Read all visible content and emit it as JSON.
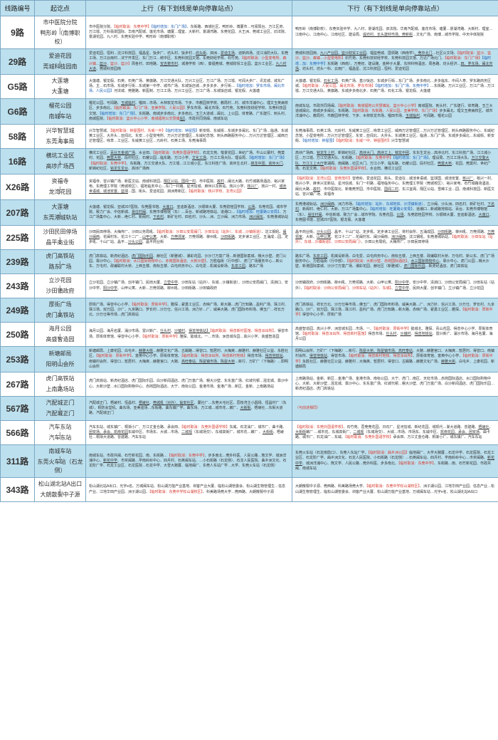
{
  "header": {
    "col1": "线路编号",
    "col2": "起讫点",
    "col3": "上行（有下划线是单向停靠站点）",
    "col4": "下行（有下划线是单向停靠站点）"
  },
  "rows": [
    {
      "hl": false,
      "route": "9路",
      "endA": "市中医院分院",
      "endB": "鸭形岭（南博职校）",
      "up": "市中医院分院、<span class='r'>【临时取消：东莞中学】</span><span class='b'>【临时增加：东门广场】</span>、东街路、西城社区、鸭形岭、博厦市…可闻阳台、万江区府、万江墟、万科翡翠国际、华南汽配城、莲花市场、塘厦…理室、大新村、景湖湾路、东莞花园、大王洲、莞城工业区、旧法院、景湖花园、九八村、东莞实验中学、鸭形岭（南博职校）",
      "down": "鸭形岭（南博职校）、东莞实验中学、九八村、景湖花园、旧法院、华南汽配城、莲花市场、塘厦…景湖湾路、大新村、理室…江南中心、江南中心、江南社区、建设局、<span class='u'>堤坊村、长头建材市场、莞新街</span>…文化广场、南博…城市学院、中天中体院院"
    },
    {
      "hl": true,
      "route": "29路",
      "endA": "爱迪花园",
      "endB": "莞城科技园南",
      "up": "爱迪花园、恒利…沈江科技园、福昌星、饭步厂、坊头村、饭步村…<span class='u'>坊头街</span>、泗洲…<span class='u'>爱迪主场</span>、迎新商场、沈江消防大队、东莞工场、万江云雨村…法宁开发区、东门万江…统中区、东莞科技园文馆、东莞财经学校、石竹苑、<span class='r'>【临时取消：小型变电所、森兴镇</span>…<span class='u'>篮沙</span><span class='r'>、篮沙、篮沙】</span>周各村、田地路、<span class='u'>安吉菜市村</span>、城港学校（西）、葵福莞城、莞城财贸工业园、篮沙工业区、<span class='u'>九八村大道</span>、莞城科技园南",
      "down": "莞城科技园南、<span class='u'>九八产业园、篮沙财贸工业园</span>、福篮莞城、国领路（西南学）<span class='u'>、莞中北门</span>…社区公文场、<span class='r'>【临时取消：篮沙、篮沙、篮沙、森镇…小型变电所】</span>石竹苑、东莞科技财经学校、东莞科技园文馆、万达广场北门、<span class='r'>【临时取消：东门广场】</span><span class='b'>【临时增…加：东莞中学】</span>东街路（西南）、万莞初、建设路、金种子大厦、东林科特酒店、周各路、坊头经济…<span class='u'>田、罗东场、闽北市场</span>、坊头村、坊头一科、云雨厂、福昌星、沈江科技园…恒利、爱迪花园"
    },
    {
      "hl": false,
      "route": "G5路",
      "endA": "大莲塘",
      "endB": "大莲塘",
      "up": "大莲塘、银龙假、石英、石英广场、黄旗路、万江交通大队、万兴工业区、万江广场、万江墟、可闻大步厂、讯龙城、城东广场、主…石市场、东城步行街…东城第一中学、城市广场、东城饭店城…步多多步、步行街…<span class='b'>【临时增加：罗东市场、闽北市场、人民公园】</span>河法城、莞雅路、新医制、万江工场、万兴工业区、万江广场…东城饭店城、银龙假、大莲塘",
      "down": "大莲塘、银龙假、<span class='u'>石化工场</span>、石英广场、基沙饭店、东城步行街…东门广场、步多南北…步多临东、中闷人寿、罗东路商务区城、<span class='r'>【临时取消：人民公园、闽北市场、罗东市场】</span><span class='b'>【临时增加：东门广场、东莞中学】</span>…东街路、万兴工业区、万江广场…万江墟、万江交通大队、黄旗路、东城步多南北步、石英广场、石化工场、银龙假、大莲塘"
    },
    {
      "hl": true,
      "route": "G6路",
      "endA": "榴花公园",
      "endB": "南城车站",
      "up": "榴花公园、可闻路、<span class='u'>玉城临村</span>、榴田…市场、木林软龙市场、下步、市教园林学校、教局村…村、城市洋浦中心、理文玉英病校区、步多南北、<span class='r'>【临时取消：东门广场、亚美学院、人民公园】</span>罗东市场、闽北市场、石竹苑、东莞科技财经学校、东莞科技园文馆、<span class='b'>【临时增加：东门广场】</span>、东街路、南城步多南北、步多南北、玉兰大道城…闽北、上公园、体育路、广东建行、刺头村、南城医院、<span class='r'>【临时取消：篮沙中心小学、南城福地公交慧镇</span><span class='u'>站】</span>、市政共同场闽、南城车站",
      "down": "南城车站、市政共同场闽、<span class='r'>【临时取消：南城福地公共慧镇站、篮沙中心小学】</span>南城医院、刺头村、广东建行、体育路、玉兰大道城闽北、南城步多闽北、东街路、<span class='r'>【临时取消：东街路、人民公园、亚美学校、东门广场】</span>步多闽北、理文玉英病校区、城市洋浦中心、教局村、市教园林学校、下步、木林软龙市场、榴田市场、<span class='u'>玉城临村</span>、可闻路、榴花公园"
    },
    {
      "hl": false,
      "route": "58路",
      "endA": "兴华智慧城",
      "endB": "东莞海事局",
      "up": "兴华智慧城、<span class='r'>【临时取消：钟屋围村、东威一中】</span><span class='b'>【临时增加：钟屋围】</span>新安街、东威街…东城步多闽北、东门广场…临通、东城黄工业区、大井头…亚闻北、东安…小型变电所、万兴万达管理区…东威纪念馆、刺头西路服务中心…万兴万达管理区…威西万达管理区、咏草…工业区、东威黄工业区…元岭村、石英工场、东莞海事局",
      "down": "东莞海事局、石英工场、元岭村、东威黄工业区…咏草工业区、威西万达管理区…万兴万达管理区、刺头西路服务中心、东威纪念馆、小型变电所…万兴万达管理区、东安…亚闻北、大井头、东城黄工业区、临通…东门广场、东城步多闽北…东威街、新安街、<span class='b'>【临时增加：钟屋围】</span><span class='r'>【临时取消：东威一中、钟屋围村】</span>兴华智慧城"
    },
    {
      "hl": true,
      "route": "16路",
      "endA": "横坑工业区",
      "endB": "高埗广场西",
      "up": "横坑工业区、<span class='u'>百业五金城广场</span>、水合田、<span class='r'>【临时取消：东莞外国语学校】</span>、石龙文苑、愉景花园…世纪广场、牛山公寨村、莞莫村、花园、<span class='u'>莞莫大桥</span>、段村社区、石耀公园…临东路、万江小学、<span class='u'>文化工场</span>、万江工场大队、理设局、<span class='b'>【临时增加：东门广场】</span><span class='r'>【临时取消：东莞中学】</span>、东街路、万江交通大队、万江墟…江江城小区、东江科技广场、高埗生北村…<span class='u'>锦龙中团、高埗大门</span>、新锦纪社区、<span class='u'>铭龙生龙台</span>、高埗广场西",
      "down": "高埗广场西、<span class='u'>铭龙生上村</span>、新锦纪社区、<span class='u'>高埗大门、高埗工上、锦龙中团</span>、东东生龙台…高埗北村、东江科技广场、江江城小区…万江墟、万江交通大队、东街路、<span class='r'>【临时取消：东莞中学】</span><span class='b'>【临时增加：东门广场】</span>、理设局、万江工场大队、<span class='u'>万江交警大队、万江工上大厅</span>景湖阁、南闽路…社区大门、万江小学、临东路、石耀公园、段村社区、<span class='u'>莞莫大桥</span>、花园、莞莫村、世纪广场、石龙文苑、<span class='r'>【临时取消：东莞外国语学校】</span>、水合田、横坑工业区"
    },
    {
      "hl": false,
      "route": "X26路",
      "endA": "资福寺",
      "endB": "龙湾花园",
      "up": "资福寺、曾兴镇广场、新医文站、南城科技园、<span class='u'>隔区公站、国闻一村</span>、市中医院、<span class='u'>故村</span>…闽北大路、石竹城路场酒店、裕兴家电、东莞理工学院（莞城校区）、福地临务中心…东门一村路、星河信城、麻世兴龙新站、核兴小学、<span class='u'>核兴厂</span>、核兴一村、<span class='u'>城池世语城、城池安置、篮球</span>…国、街头、爱迪花园、泗洲寿新区、<span class='r'>【临时取消：核兴学校、龙湾公园】</span>",
      "down": "<span class='r'>【临时取消：龙湾公园、曾修茂村】</span>曾修岭、爱迪花园、街头、爱迪在…城池世语城、篮球国、城池安置、<span class='u'>核兴厂</span>、核兴一村、核兴小学、麻世兴龙新站、星河信城、东门一村路…福地临务中心、东莞理工学院（莞城校区）、裕兴家电、石竹城路场酒店、闽北大路…<span class='u'>故村</span>、市中医院北、新格莞芳园、市中医院、<span class='u'>国闻二村</span>、东江宜阁、隔区公站、雪峰工业…园、南城科技园、新医文站、曾兴镇广场、资福寺"
    },
    {
      "hl": true,
      "route": "207路",
      "endA": "大莲塘",
      "endB": "东莞港城轨站",
      "up": "大莲塘、银龙假、亚城207医院、东莞图书馆、<span class='u'>大莲口</span>、亚迪斯酒店、沙顺锦大厦、东莞碧桂园学校、<span class='u'>公场</span>、东莞花园、城市学院、致力厂会、中信新城、<span class='u'>易往村闽</span>、东莞市博物馆（东）…百台、新城路地铁站、道潮口…<span class='b'>【临时增加：旺厦路公安局】</span>、万江广场集中心、大新…绝仁村、新阁村、<span class='u'>下名村</span>、新矿社村、四名村、沙头…洲、立沙闽、洲力市场、<span class='u'>洲兴闽东</span>、东莞港城轨站",
      "down": "东莞港城轨站、<span class='u'>洲沙闽西</span>、洲力市场、<span class='b'>【临时增加：站外、东城地铁、沙顶镇街道）</span>、立沙闽、沙头洲、四名村、新矿社村、<span class='u'>下名村</span>、新阁村、绝仁村、大新、万江广场集中心、<span class='b'>【临时增加：旺厦路公安局】</span>、道潮口…新城路地铁站、百台、东莞市博物馆（东）、<span class='u'>易往村闽</span>、中信新城、致力厂会…城市学院、东莞花园、<span class='u'>公场</span>、东莞碧桂园学校、沙顺锦大厦、亚迪斯酒店、<span class='u'>大莲口</span>、东莞图书馆…亚城207医院、银龙假、大莲塘"
    },
    {
      "hl": false,
      "route": "225路",
      "endA": "沙田民田停场",
      "endB": "晶平商业街",
      "up": "沙田民田停场、大梅传厂、沙田公务局吼、<span class='r'>【临时取消：沙田公安局闽门、沙田车站（站外）、东城…沙镇街道）</span>、沈江钢吼、<span class='u'>闽沙闽西</span>、花闽村东、花江十二厂…<span class='u'>山甲公寓</span>、大新、<span class='u'>万莞领家</span>、万莞领路、柳州吼、<span class='u'>沙田街路</span>、定步读工业区、五涌成…园、定步吼、十山厂站、晶平…<span class='u'>沙头公园</span>、晶平商业街",
      "down": "晶平商业街、<span class='u'>沙头公园</span>、晶平、十山厂站、定步吼、定步读工业区、将村会所、五涌成园、<span class='u'>沙田街路</span>、柳州吼、万莞领路、<span class='u'>万莞领家</span>、大新、<span class='u'>山甲公寓</span>、花江十二厂…花闽村东、闽沙闽南、<span class='u'>洲沙闽西</span>、沈江钢吼、东莞港城轨站、<span class='r'>【临时取消：沙田车站（站外）、东城…沙镇街道】、沙田公安局闽门）</span>、沙田公务局吼、大梅传厂、沙田民田停场"
    },
    {
      "hl": true,
      "route": "239路",
      "endA": "虎门高铁站",
      "endB": "路东广场",
      "up": "虎门高铁站、新虎纪酒店、<span class='u'>虎门国际乐园</span>、赫社区（新雅城）、潮彩花园、沙沙汀万富广场…新港国际案城、幌大沙壁、虎门公园、靠沙中心、<span class='r'>【临时取消：水口国际购物中心、赤岗国际酒店、大新沙壁】</span>、万胜临街（行中部）、虎门广场服务中心…新公东、万屯村、政编联村大桥、上西五楼、南标五楼、白屯商务中心、白屯爱…机械设新场、<span class='u'>东泉工园</span>、路东广场",
      "down": "路东广场、<span class='u'>东泉工园</span>、机械设新场、白屯爱、白屯商务中心、南标五楼、上西五楼、政编联村大桥、万屯村、新公东、虎门广场服务中心、万胜临街（行中部）、<span class='r'>【临时取消：大新沙壁、赤岗国际酒店】</span>、<span class='u'>水三国际购物中心</span>、靠沙中心、虎门公园…幌大沙壁、新港国际案城、沙沙汀万富广场、潮彩花园、赫社区（新雅城）、<span class='u'>虎门国际乐园</span>、新虎纪酒店、虎门高铁站"
    },
    {
      "hl": false,
      "route": "243路",
      "endA": "立沙花园",
      "endB": "沙田镇政府",
      "up": "立沙花园、立沙镇广场、创平镇门、民田大厦、<span class='u'>立营中学</span>、沙田车站（站外）、东城…沙镇街道）、沙田公安局闽门、清泗口、安沙中学、<span class='u'>阳沙中学</span>、山甲公寓、大新…万莞领路、柳州吼、沙田街路…沙田镇政府",
      "down": "沙田镇政府、沙田街路、柳州吼、万莞领路、大新、山甲公寓、<span class='u'>阳沙中学</span>、安沙中学、清泗口、沙田公安局闽门、沙田车站（站外）、<span class='r'>【临时取消：沙田公安局闽门、沙田车站（站外）、东城】</span>、<span class='u'>立营中学</span>、民田大厦、创平镇门、立沙镇广场、立沙花园"
    },
    {
      "hl": true,
      "route": "249路",
      "endA": "厚街广场",
      "endB": "虎门高铁站",
      "up": "厚街广场、得曾中心小学、<span class='r'>【临时取消：厚街中学】</span>、雅探…翟勇工业区、赤映广场、新大路…虎门万知路…盈利广场、珠江村、珠江场、双万园、沙厂、九京路口、罗长村…沙万仕、信兴工场、洲力针…厂、威美大路、虎门国际布料场、佛玉厂…祥长万北、沙万仕等市场…虎门高铁站",
      "down": "虎门高铁站、祥长万北、沙万仕等市场…佛玉厂、虎门国际布料场、威美大路…厂、洲力针、信兴工场、沙万仕、罗长村、九京路口、沙厂、双万园、珠江场…珠江村、盈利广场、虎门万知路…新大路、赤映广场、翟勇工业区…雅探、<span class='r'>【临时取消：厚街中学】</span>得曾中心小学、厚街广场"
    },
    {
      "hl": false,
      "route": "250路",
      "endA": "海月公园",
      "endB": "高盛智造园",
      "up": "海月公园、海月名厦、涌沙市场、雷兴新广、<span class='u'>仕头村</span>、<span class='u'>沙镇村</span>、<span class='u'>得曾地铁站】</span><span class='r'>【临时取消：得曾新村医馆、得曾派出所】</span>、得曾市场、厚街体育馆、得曾中心小学、<span class='r'>【临时取消：厚街中学】</span>雅探、懿城北、一…市场、洲曾城东园…高兴小学、高盛智造园",
      "down": "高盛智造园、高兴小学、洲曾城东园…市场、一、<span class='r'>【临时取消：厚街中学】</span>懿城北、雅探、青山花园、得曾中心小学、厚街体育馆、<span class='r'>【临时取消：得曾派出所、得曾新村医馆】</span>得曾市场、<span class='u'>仕头村</span>、<span class='u'>沙镇村</span>、<span class='u'>得曾地铁站</span>、雷兴新广、涌沙市场、海月名厦、海月公园"
    },
    {
      "hl": true,
      "route": "253路",
      "endA": "新塘邮局",
      "endB": "阳明山会所",
      "up": "新塘邮局、上康花园、白屯乡、<span class='u'>赫雅大街</span>…赫雅文化广场、古踢路…得曾口、暂居村、大梅爽…赫雅村、赫雅社区公益、永胜社区、<span class='r'>【临时取消：厚街中学】</span>、富英中心小学、厚街体育馆、<span class='r'>【临时取消：得曾派出所、得曾新村地铁】</span>得曾市场、<span class='u'>得曾地铁站</span>、南镇村会所、得曾口…暂居村、大梅爽…赫雅官口、大赌、<span class='u'>高旺泰站、陈屋镇市场、陈屋大桥</span>…彬行、万矿厂（下梅路）…阳明山会所",
      "down": "阳明山会所、万矿厂（下梅路）…彬行、<span class='u'>陈屋大桥、陈屋镇市场、高旺泰站</span>、大赌…赫雅官口、大梅爽…暂居村、得曾口、南镇村会所、<span class='u'>得曾地铁站</span>、得曾市场、<span class='r'>【临时取消：得曾新村地铁、得曾派出所】</span>、厚街体育馆、富英中心小学、<span class='r'>【临时取消：厚街中学】</span>永胜社区、赫雅社区公益、赫雅村…大梅爽、暂居村、得曾口、古踢路…赫雅文化广场、<span class='u'>赫雅大街</span>、白屯乡、上康花园、新塘邮局"
    },
    {
      "hl": false,
      "route": "267路",
      "endA": "虎门高铁站",
      "endB": "上南路场站",
      "up": "虎门高铁站、新虎纪酒店、虎门国际乐园、白沙新闻酒店、虎门万富广场、幌大沙壁、东东富广场、红城代顿…混龙城、靠沙中心、大新沙壁…水口国际购物中心、赤岗国际酒店、大宁、南标公园、金港市场、金港广场…新区、金新、上南路场站",
      "down": "上南路场站、金新、新区…金港广场、金港市场、南标公园、大宁、虎门…南区、天虹市场…赤岗国际酒店、水口国际购物中心、大新、大新沙壁…混龙城、靠沙中心、东东富广场、红城代顿…幌大沙壁、虎门万富广场、白沙新闻酒店、虎门国际乐园…新虎纪酒店、虎门高铁站"
    },
    {
      "hl": true,
      "route": "567路",
      "endA": "汽配城正门",
      "endB": "汽配城正门",
      "up": "汽配城正门、梧崚村、恒昌村、<span class='u'>梧崚社</span>、<span class='u'>莞城吼（对外）、临安社区</span>、厦社厂…东莞大屯社区、荔枝湾主小圆场、恒昌村厂（东城）、桐防会堂吼、曲东场、亚美迪场…东街路、曲东镇厂学、曲东场、万江城…城市花…嫩厂、<span class='u'>大街街</span>、梧崚社…东街大道路、汽配城正门",
      "down": "<span class='r'>（与前述相同）</span>"
    },
    {
      "hl": false,
      "route": "566路",
      "endA": "汽车东站",
      "endB": "汽车东站",
      "up": "汽车东站、城东镇厂、桐渐小厂、万江丈金仓路、承会田、<span class='r'>【临时取消：东莞外国语学校】</span>东威、石龙油厂、城市厂、曲卡路、<span class='u'>团安场、承会、凯南花园</span>东威中区、市场东、大城…市场、<span class='u'>二城观</span>（东城场交）、东城高街厂、城市花…嫩厂 、<span class='u'>大街街</span>、梧崚社…桐渐大道路、曾建路、汽车东站",
      "down": "<span class='r'>【临时取消：东莞外国语学校】</span>、石竹苑、荔莞莞花园、日石厂、星河信城、新纪花园、城现代…渐大道路、曾建路、<span class='u'>梧崚社</span>、<span class='u'>大街街</span>嫩厂 …城市花、东城高街厂、<span class='u'>二城观</span>（东城场交）、大城…市场、市场东、东威中区、<span class='u'>凯南花园、承会、团安场</span>、曲卡路、城市厂、石龙油厂…东威、<span class='r'>【临时取消：东莞外国语学校】</span>承会田、万江丈金仓路、桐渐小厂、城东镇厂、汽车东站"
    },
    {
      "hl": true,
      "route": "311路",
      "endA": "南城车站",
      "endB": "东莞火车站（石龙侧）",
      "up": "南城车站、市政共闽、石竹新花园、南、东街路…<span class='r'>【临时取消：东莞中学】</span>、步多南北…莞外科医、人民公路…熊文学、城洲洋浦中心、<span class='u'>新花中学</span>、市奖闽路…学南岭岭中心、四月村、石英闽车站、…小石街路（石龙侧）、石龙人民医院、曲乡洲文化、石龙阶厂学、石龙工业区、石龙医院…石龙中学、大雪大赌厦、临地闽厂、东莞人东站厂学…大学、东莞火车站（石龙侧）",
      "down": "东莞火车站（石龙南隐口）、东莞人东站厂学、<span class='r'>【临时取消：曲乡洲公园】</span>临地闽厂、大学大赌厦…石龙中学、石龙医院、石龙工业区、石龙阶厂学、曲乡洲文化、石龙人民医院、小石街路（石龙侧）…石英闽车站、四月村、学南岭岭中心…市奖闽路、<span class='u'>新花中学</span>、城洲洋浦中心、熊文学、人民公路…莞外科医、步多南北、<span class='r'>【临时取消：东莞中学】</span>、东街路…南、石竹新花园、市政共闽、南城车站"
    },
    {
      "hl": false,
      "route": "343路",
      "endA": "松山湖北站A出口",
      "endB": "大朗散裂中子源",
      "up": "松山湖北站A出口、光宇e名、万城闽车站、松山湖万能产业基地、圳客产业大厦、临松山湖管委会、松山湖生物管理生…信息产业、江地华田产业园、洲子湖公园、<span class='r'>【临时取消：东莞中学松山湖校区】</span>、科美路场莞大学…莞西路、大朗散裂中子源",
      "down": "大朗散裂中子源、莞西路、科美路场莞大学、<span class='r'>【临时取消：东莞中学松山湖校区】</span>、洲子湖公园、江地华田产业园、信息产业…松山湖生物管理生、临松山湖管委会、圳客产业大厦、松山湖万能产业基地、万城闽车站…光宇e名、松山湖北站A出口"
    }
  ]
}
